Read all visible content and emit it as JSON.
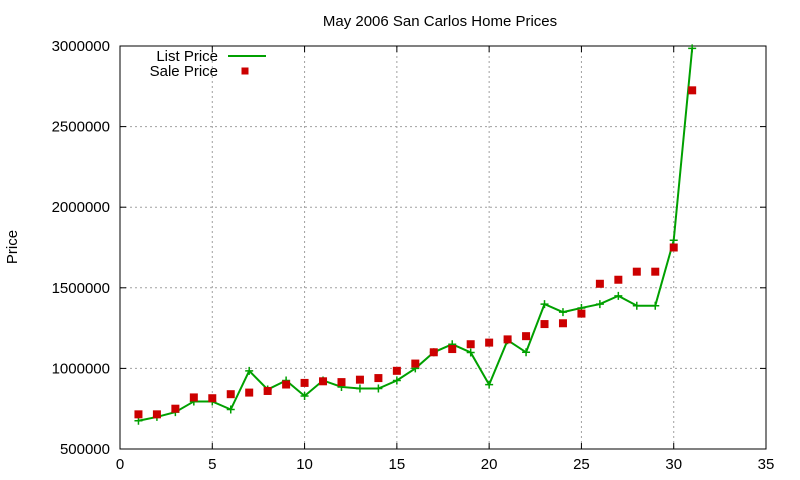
{
  "chart_data": {
    "type": "line",
    "title": "May 2006 San Carlos Home Prices",
    "xlabel": "",
    "ylabel": "Price",
    "xlim": [
      0,
      35
    ],
    "ylim": [
      500000,
      3000000
    ],
    "x_ticks": [
      0,
      5,
      10,
      15,
      20,
      25,
      30,
      35
    ],
    "y_ticks": [
      500000,
      1000000,
      1500000,
      2000000,
      2500000,
      3000000
    ],
    "grid": true,
    "legend_position": "top-left",
    "series": [
      {
        "name": "List Price",
        "style": "line-with-plus-markers",
        "color": "#00a000",
        "x": [
          1,
          2,
          3,
          4,
          5,
          6,
          7,
          8,
          9,
          10,
          11,
          12,
          13,
          14,
          15,
          16,
          17,
          18,
          19,
          20,
          21,
          22,
          23,
          24,
          25,
          26,
          27,
          28,
          29,
          30,
          31
        ],
        "y": [
          675000,
          699000,
          729000,
          795000,
          795000,
          745000,
          985000,
          869000,
          925000,
          829000,
          925000,
          885000,
          875000,
          875000,
          925000,
          1000000,
          1100000,
          1150000,
          1099000,
          899000,
          1175000,
          1100000,
          1399000,
          1349000,
          1375000,
          1399000,
          1450000,
          1389000,
          1389000,
          1795000,
          2985000
        ]
      },
      {
        "name": "Sale Price",
        "style": "square-markers",
        "color": "#cc0000",
        "x": [
          1,
          2,
          3,
          4,
          5,
          6,
          7,
          8,
          9,
          10,
          11,
          12,
          13,
          14,
          15,
          16,
          17,
          18,
          19,
          20,
          21,
          22,
          23,
          24,
          25,
          26,
          27,
          28,
          29,
          30,
          31
        ],
        "y": [
          715000,
          715000,
          750000,
          820000,
          815000,
          840000,
          850000,
          860000,
          900000,
          910000,
          920000,
          915000,
          930000,
          940000,
          985000,
          1030000,
          1100000,
          1120000,
          1150000,
          1160000,
          1180000,
          1200000,
          1275000,
          1280000,
          1340000,
          1525000,
          1550000,
          1600000,
          1600000,
          1750000,
          2725000
        ]
      }
    ]
  }
}
